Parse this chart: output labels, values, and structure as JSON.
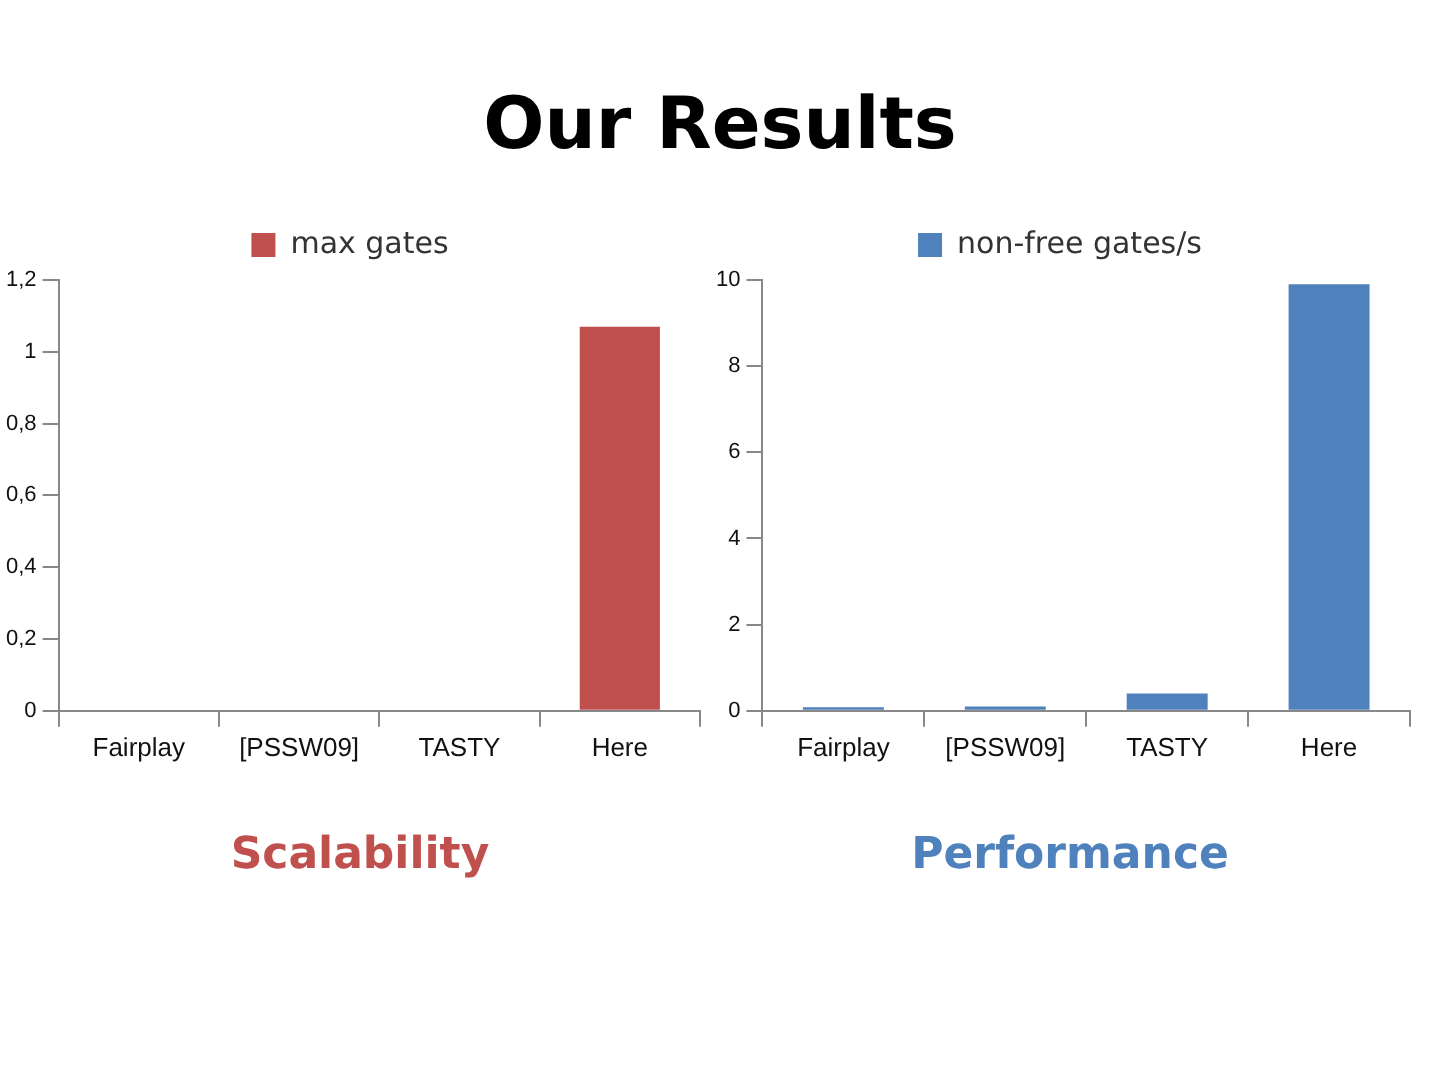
{
  "chart_data": [
    {
      "type": "bar",
      "title": "Our Results",
      "xlabel": "Scalability",
      "categories": [
        "Fairplay",
        "[PSSW09]",
        "TASTY",
        "Here"
      ],
      "series": [
        {
          "name": "max gates",
          "color": "#c0504d",
          "values": [
            0,
            0,
            0,
            1.07
          ]
        }
      ],
      "ylim": [
        0,
        1.2
      ],
      "yticks": [
        0,
        {
          "value": 0.2,
          "label": "0,2"
        },
        {
          "value": 0.4,
          "label": "0,4"
        },
        {
          "value": 0.6,
          "label": "0,6"
        },
        {
          "value": 0.8,
          "label": "0,8"
        },
        1,
        {
          "value": 1.2,
          "label": "1,2"
        }
      ],
      "grid": false,
      "legend": "top"
    },
    {
      "type": "bar",
      "xlabel": "Performance",
      "categories": [
        "Fairplay",
        "[PSSW09]",
        "TASTY",
        "Here"
      ],
      "series": [
        {
          "name": "non-free gates/s",
          "color": "#4f81bd",
          "values": [
            0.08,
            0.1,
            0.4,
            9.9
          ]
        }
      ],
      "ylim": [
        0,
        10
      ],
      "yticks": [
        0,
        2,
        4,
        6,
        8,
        10
      ],
      "grid": false,
      "legend": "top"
    }
  ]
}
